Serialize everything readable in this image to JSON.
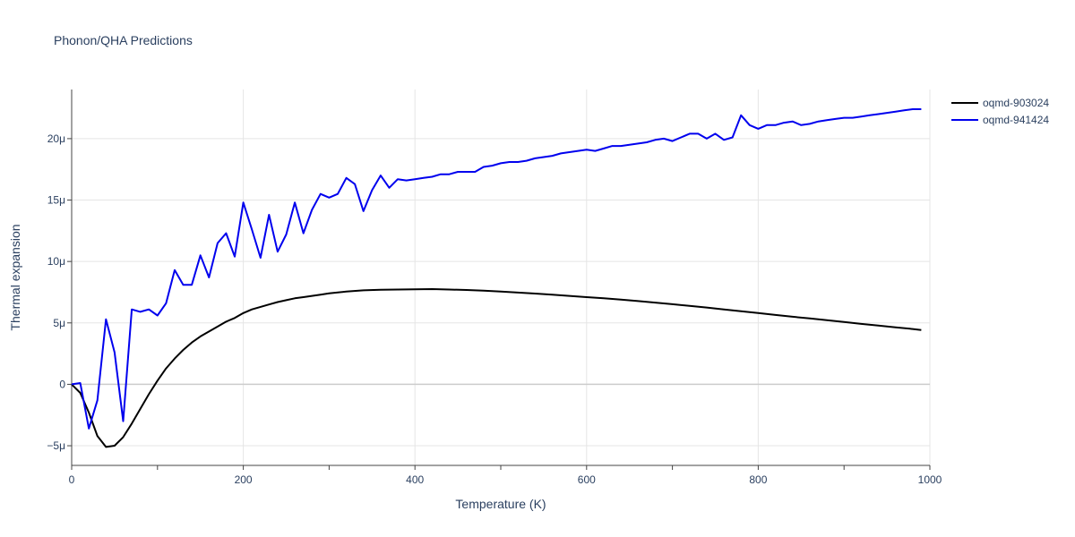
{
  "chart_data": {
    "type": "line",
    "title": "Phonon/QHA Predictions",
    "xlabel": "Temperature (K)",
    "ylabel": "Thermal expansion",
    "xlim": [
      0,
      1000
    ],
    "ylim": [
      -6.6,
      24
    ],
    "grid": true,
    "legend_position": "top-right",
    "x_ticks": [
      0,
      200,
      400,
      600,
      800,
      1000
    ],
    "x_tick_labels": [
      "0",
      "200",
      "400",
      "600",
      "800",
      "1000"
    ],
    "y_ticks": [
      -5,
      0,
      5,
      10,
      15,
      20
    ],
    "y_tick_labels": [
      "−5μ",
      "0",
      "5μ",
      "10μ",
      "15μ",
      "20μ"
    ],
    "series": [
      {
        "name": "oqmd-903024",
        "color": "#000000",
        "x": [
          0,
          10,
          20,
          30,
          40,
          50,
          60,
          70,
          80,
          90,
          100,
          110,
          120,
          130,
          140,
          150,
          160,
          170,
          180,
          190,
          200,
          210,
          220,
          230,
          240,
          250,
          260,
          270,
          280,
          290,
          300,
          320,
          340,
          360,
          380,
          400,
          420,
          440,
          460,
          480,
          500,
          520,
          540,
          560,
          580,
          600,
          620,
          640,
          660,
          680,
          700,
          720,
          740,
          760,
          780,
          800,
          820,
          840,
          860,
          880,
          900,
          920,
          940,
          960,
          980,
          990
        ],
        "y": [
          0,
          -0.7,
          -2.3,
          -4.2,
          -5.1,
          -5.0,
          -4.3,
          -3.2,
          -2.0,
          -0.8,
          0.3,
          1.3,
          2.1,
          2.8,
          3.4,
          3.9,
          4.3,
          4.7,
          5.1,
          5.4,
          5.8,
          6.1,
          6.3,
          6.5,
          6.7,
          6.85,
          7.0,
          7.1,
          7.2,
          7.3,
          7.4,
          7.55,
          7.65,
          7.7,
          7.72,
          7.74,
          7.75,
          7.72,
          7.68,
          7.63,
          7.55,
          7.47,
          7.39,
          7.3,
          7.2,
          7.1,
          7.0,
          6.9,
          6.78,
          6.65,
          6.52,
          6.38,
          6.25,
          6.1,
          5.95,
          5.8,
          5.65,
          5.5,
          5.36,
          5.22,
          5.07,
          4.92,
          4.78,
          4.64,
          4.5,
          4.42
        ]
      },
      {
        "name": "oqmd-941424",
        "color": "#0000ee",
        "x": [
          0,
          10,
          20,
          30,
          40,
          50,
          60,
          70,
          80,
          90,
          100,
          110,
          120,
          130,
          140,
          150,
          160,
          170,
          180,
          190,
          200,
          210,
          220,
          230,
          240,
          250,
          260,
          270,
          280,
          290,
          300,
          310,
          320,
          330,
          340,
          350,
          360,
          370,
          380,
          390,
          400,
          410,
          420,
          430,
          440,
          450,
          460,
          470,
          480,
          490,
          500,
          510,
          520,
          530,
          540,
          550,
          560,
          570,
          580,
          590,
          600,
          610,
          620,
          630,
          640,
          650,
          660,
          670,
          680,
          690,
          700,
          710,
          720,
          730,
          740,
          750,
          760,
          770,
          780,
          790,
          800,
          810,
          820,
          830,
          840,
          850,
          860,
          870,
          880,
          890,
          900,
          910,
          920,
          930,
          940,
          950,
          960,
          970,
          980,
          990
        ],
        "y": [
          0,
          0.1,
          -3.6,
          -1.3,
          5.3,
          2.6,
          -3.0,
          6.1,
          5.9,
          6.1,
          5.6,
          6.6,
          9.3,
          8.1,
          8.1,
          10.5,
          8.7,
          11.5,
          12.3,
          10.4,
          14.8,
          12.6,
          10.3,
          13.8,
          10.8,
          12.2,
          14.8,
          12.3,
          14.2,
          15.5,
          15.2,
          15.5,
          16.8,
          16.3,
          14.1,
          15.8,
          17.0,
          16.0,
          16.7,
          16.6,
          16.7,
          16.8,
          16.9,
          17.1,
          17.1,
          17.3,
          17.3,
          17.3,
          17.7,
          17.8,
          18.0,
          18.1,
          18.1,
          18.2,
          18.4,
          18.5,
          18.6,
          18.8,
          18.9,
          19.0,
          19.1,
          19.0,
          19.2,
          19.4,
          19.4,
          19.5,
          19.6,
          19.7,
          19.9,
          20.0,
          19.8,
          20.1,
          20.4,
          20.4,
          20.0,
          20.4,
          19.9,
          20.1,
          21.9,
          21.1,
          20.8,
          21.1,
          21.1,
          21.3,
          21.4,
          21.1,
          21.2,
          21.4,
          21.5,
          21.6,
          21.7,
          21.7,
          21.8,
          21.9,
          22.0,
          22.1,
          22.2,
          22.3,
          22.4,
          22.4
        ]
      }
    ]
  }
}
